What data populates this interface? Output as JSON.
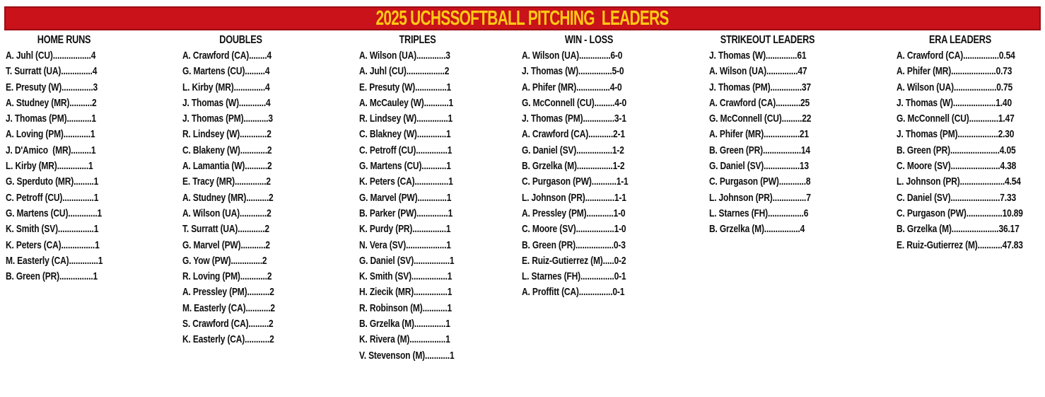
{
  "title": "2025 UCHSSOFTBALL PITCHING  LEADERS",
  "colors": {
    "banner_red": "#C9121A",
    "banner_border": "#9B0E13",
    "title_gold": "#FFC913",
    "text": "#0E0E0E",
    "background": "#FFFFFF"
  },
  "columns": [
    {
      "title": "HOME RUNS",
      "entries": [
        {
          "player": "A. Juhl (CU)",
          "dots": ".................",
          "value": "4"
        },
        {
          "player": "T. Surratt (UA)",
          "dots": "..............",
          "value": "4"
        },
        {
          "player": "E. Presuty (W)",
          "dots": "..............",
          "value": "3"
        },
        {
          "player": "A. Studney (MR)",
          "dots": "..........",
          "value": "2"
        },
        {
          "player": "J. Thomas (PM)",
          "dots": "...........",
          "value": "1"
        },
        {
          "player": "A. Loving (PM)",
          "dots": "............",
          "value": "1"
        },
        {
          "player": "J. D'Amico  (MR)",
          "dots": ".........",
          "value": "1"
        },
        {
          "player": "L. Kirby (MR)",
          "dots": "..............",
          "value": "1"
        },
        {
          "player": "G. Sperduto (MR)",
          "dots": ".........",
          "value": "1"
        },
        {
          "player": "C. Petroff (CU)",
          "dots": "..............",
          "value": "1"
        },
        {
          "player": "G. Martens (CU)",
          "dots": ".............",
          "value": "1"
        },
        {
          "player": "K. Smith (SV)",
          "dots": "................",
          "value": "1"
        },
        {
          "player": "K. Peters (CA)",
          "dots": "...............",
          "value": "1"
        },
        {
          "player": "M. Easterly (CA)",
          "dots": ".............",
          "value": "1"
        },
        {
          "player": "B. Green (PR)",
          "dots": "...............",
          "value": "1"
        }
      ]
    },
    {
      "title": "DOUBLES",
      "entries": [
        {
          "player": "A. Crawford (CA)",
          "dots": "........",
          "value": "4"
        },
        {
          "player": "G. Martens (CU)",
          "dots": ".........",
          "value": "4"
        },
        {
          "player": "L. Kirby (MR)",
          "dots": "..............",
          "value": "4"
        },
        {
          "player": "J. Thomas (W)",
          "dots": "............",
          "value": "4"
        },
        {
          "player": "J. Thomas (PM)",
          "dots": "...........",
          "value": "3"
        },
        {
          "player": "R. Lindsey (W)",
          "dots": "............",
          "value": "2"
        },
        {
          "player": "C. Blakeny (W)",
          "dots": "............",
          "value": "2"
        },
        {
          "player": "A. Lamantia (W)",
          "dots": "..........",
          "value": "2"
        },
        {
          "player": "E. Tracy (MR)",
          "dots": "..............",
          "value": "2"
        },
        {
          "player": "A. Studney (MR)",
          "dots": "..........",
          "value": "2"
        },
        {
          "player": "A. Wilson (UA)",
          "dots": "............",
          "value": "2"
        },
        {
          "player": "T. Surratt (UA)",
          "dots": "............",
          "value": "2"
        },
        {
          "player": "G. Marvel (PW)",
          "dots": "...........",
          "value": "2"
        },
        {
          "player": "G. Yow (PW)",
          "dots": "..............",
          "value": "2"
        },
        {
          "player": "R. Loving (PM)",
          "dots": "............",
          "value": "2"
        },
        {
          "player": "A. Pressley (PM)",
          "dots": "..........",
          "value": "2"
        },
        {
          "player": "M. Easterly (CA)",
          "dots": "...........",
          "value": "2"
        },
        {
          "player": "S. Crawford (CA)",
          "dots": ".........",
          "value": "2"
        },
        {
          "player": "K. Easterly (CA)",
          "dots": "...........",
          "value": "2"
        }
      ]
    },
    {
      "title": "TRIPLES",
      "entries": [
        {
          "player": "A. Wilson (UA)",
          "dots": ".............",
          "value": "3"
        },
        {
          "player": "A. Juhl (CU)",
          "dots": ".................",
          "value": "2"
        },
        {
          "player": "E. Presuty (W)",
          "dots": "..............",
          "value": "1"
        },
        {
          "player": "A. McCauley (W)",
          "dots": "...........",
          "value": "1"
        },
        {
          "player": "R. Lindsey (W)",
          "dots": "..............",
          "value": "1"
        },
        {
          "player": "C. Blakney (W)",
          "dots": ".............",
          "value": "1"
        },
        {
          "player": "C. Petroff (CU)",
          "dots": "..............",
          "value": "1"
        },
        {
          "player": "G. Martens (CU)",
          "dots": "...........",
          "value": "1"
        },
        {
          "player": "K. Peters (CA)",
          "dots": "...............",
          "value": "1"
        },
        {
          "player": "G. Marvel (PW)",
          "dots": ".............",
          "value": "1"
        },
        {
          "player": "B. Parker (PW)",
          "dots": "..............",
          "value": "1"
        },
        {
          "player": "K. Purdy (PR)",
          "dots": "...............",
          "value": "1"
        },
        {
          "player": "N. Vera (SV)",
          "dots": "..................",
          "value": "1"
        },
        {
          "player": "G. Daniel (SV)",
          "dots": "................",
          "value": "1"
        },
        {
          "player": "K. Smith (SV)",
          "dots": "................",
          "value": "1"
        },
        {
          "player": "H. Ziecik (MR)",
          "dots": "...............",
          "value": "1"
        },
        {
          "player": "R. Robinson (M)",
          "dots": "...........",
          "value": "1"
        },
        {
          "player": "B. Grzelka (M)",
          "dots": "..............",
          "value": "1"
        },
        {
          "player": "K. Rivera (M)",
          "dots": "................",
          "value": "1"
        },
        {
          "player": "V. Stevenson (M)",
          "dots": "...........",
          "value": "1"
        }
      ]
    },
    {
      "title": "WIN - LOSS",
      "entries": [
        {
          "player": "A. Wilson (UA)",
          "dots": "..............",
          "value": "6-0"
        },
        {
          "player": "J. Thomas (W)",
          "dots": "...............",
          "value": "5-0"
        },
        {
          "player": "A. Phifer (MR)",
          "dots": "...............",
          "value": "4-0"
        },
        {
          "player": "G. McConnell (CU)",
          "dots": ".........",
          "value": "4-0"
        },
        {
          "player": "J. Thomas (PM)",
          "dots": "..............",
          "value": "3-1"
        },
        {
          "player": "A. Crawford (CA)",
          "dots": "...........",
          "value": "2-1"
        },
        {
          "player": "G. Daniel (SV)",
          "dots": "................",
          "value": "1-2"
        },
        {
          "player": "B. Grzelka (M)",
          "dots": "................",
          "value": "1-2"
        },
        {
          "player": "C. Purgason (PW)",
          "dots": "...........",
          "value": "1-1"
        },
        {
          "player": "L. Johnson (PR)",
          "dots": ".............",
          "value": "1-1"
        },
        {
          "player": "A. Pressley (PM)",
          "dots": "............",
          "value": "1-0"
        },
        {
          "player": "C. Moore (SV)",
          "dots": ".................",
          "value": "1-0"
        },
        {
          "player": "B. Green (PR)",
          "dots": ".................",
          "value": "0-3"
        },
        {
          "player": "E. Ruiz-Gutierrez (M)",
          "dots": ".....",
          "value": "0-2"
        },
        {
          "player": "L. Starnes (FH)",
          "dots": "...............",
          "value": "0-1"
        },
        {
          "player": "A. Proffitt (CA)",
          "dots": "...............",
          "value": "0-1"
        }
      ]
    },
    {
      "title": "STRIKEOUT LEADERS",
      "entries": [
        {
          "player": "J. Thomas (W)",
          "dots": "..............",
          "value": "61"
        },
        {
          "player": "A. Wilson (UA)",
          "dots": "..............",
          "value": "47"
        },
        {
          "player": "J. Thomas (PM)",
          "dots": "..............",
          "value": "37"
        },
        {
          "player": "A. Crawford (CA)",
          "dots": "...........",
          "value": "25"
        },
        {
          "player": "G. McConnell (CU)",
          "dots": ".........",
          "value": "22"
        },
        {
          "player": "A. Phifer (MR)",
          "dots": "................",
          "value": "21"
        },
        {
          "player": "B. Green (PR)",
          "dots": ".................",
          "value": "14"
        },
        {
          "player": "G. Daniel (SV)",
          "dots": "................",
          "value": "13"
        },
        {
          "player": "C. Purgason (PW)",
          "dots": "............",
          "value": "8"
        },
        {
          "player": "L. Johnson (PR)",
          "dots": "...............",
          "value": "7"
        },
        {
          "player": "L. Starnes (FH)",
          "dots": "................",
          "value": "6"
        },
        {
          "player": "B. Grzelka (M)",
          "dots": "................",
          "value": "4"
        }
      ]
    },
    {
      "title": "ERA LEADERS",
      "entries": [
        {
          "player": "A. Crawford (CA)",
          "dots": "................",
          "value": "0.54"
        },
        {
          "player": "A. Phifer (MR)",
          "dots": "....................",
          "value": "0.73"
        },
        {
          "player": "A. Wilson (UA)",
          "dots": "...................",
          "value": "0.75"
        },
        {
          "player": "J. Thomas (W)",
          "dots": "...................",
          "value": "1.40"
        },
        {
          "player": "G. McConnell (CU)",
          "dots": ".............",
          "value": "1.47"
        },
        {
          "player": "J. Thomas (PM)",
          "dots": "..................",
          "value": "2.30"
        },
        {
          "player": "B. Green (PR)",
          "dots": "......................",
          "value": "4.05"
        },
        {
          "player": "C. Moore (SV)",
          "dots": "......................",
          "value": "4.38"
        },
        {
          "player": "L. Johnson (PR)",
          "dots": "....................",
          "value": "4.54"
        },
        {
          "player": "C. Daniel (SV)",
          "dots": "......................",
          "value": "7.33"
        },
        {
          "player": "C. Purgason (PW)",
          "dots": "................",
          "value": "10.89"
        },
        {
          "player": "B. Grzelka (M)",
          "dots": ".....................",
          "value": "36.17"
        },
        {
          "player": "E. Ruiz-Gutierrez (M)",
          "dots": "...........",
          "value": "47.83"
        }
      ]
    }
  ]
}
